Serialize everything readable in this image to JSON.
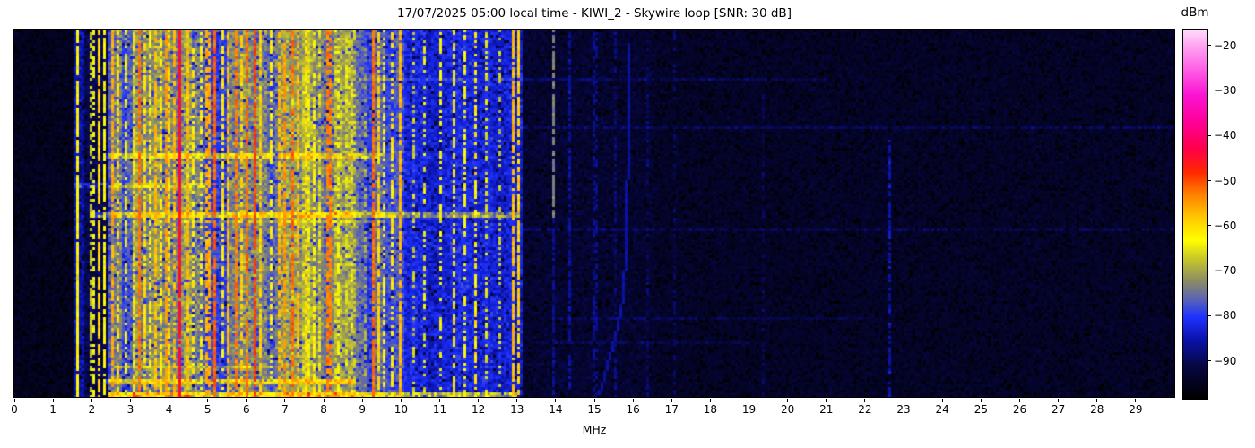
{
  "title": "17/07/2025 05:00 local time - KIWI_2 - Skywire loop [SNR: 30 dB]",
  "axis": {
    "x_label": "MHz",
    "x_ticks": [
      0,
      1,
      2,
      3,
      4,
      5,
      6,
      7,
      8,
      9,
      10,
      11,
      12,
      13,
      14,
      15,
      16,
      17,
      18,
      19,
      20,
      21,
      22,
      23,
      24,
      25,
      26,
      27,
      28,
      29
    ]
  },
  "colorbar": {
    "label": "dBm",
    "ticks": [
      -20,
      -30,
      -40,
      -50,
      -60,
      -70,
      -80,
      -90
    ]
  },
  "chart_data": {
    "type": "heatmap",
    "subtype": "radio-spectrogram-waterfall",
    "title": "17/07/2025 05:00 local time - KIWI_2 - Skywire loop [SNR: 30 dB]",
    "xlabel": "MHz",
    "x_range_mhz": [
      0,
      30
    ],
    "power_range_dbm": [
      -98,
      -16.5
    ],
    "colorbar_label": "dBm",
    "colorbar_ticks_dbm": [
      -20,
      -30,
      -40,
      -50,
      -60,
      -70,
      -80,
      -90
    ],
    "colormap_stops": [
      [
        -98,
        "#000000"
      ],
      [
        -91,
        "#06063e"
      ],
      [
        -85,
        "#0a12aa"
      ],
      [
        -80,
        "#1e32ff"
      ],
      [
        -76,
        "#5a64b4"
      ],
      [
        -72,
        "#8c8c64"
      ],
      [
        -67,
        "#c8c828"
      ],
      [
        -63,
        "#ffff00"
      ],
      [
        -58,
        "#ffc800"
      ],
      [
        -53,
        "#ff8200"
      ],
      [
        -48,
        "#ff2800"
      ],
      [
        -43,
        "#ff0046"
      ],
      [
        -37,
        "#ff0096"
      ],
      [
        -31,
        "#fa14d2"
      ],
      [
        -25,
        "#ff64e6"
      ],
      [
        -20,
        "#ffa5f0"
      ],
      [
        -16.5,
        "#ffdcfa"
      ]
    ],
    "noise_bands": [
      {
        "from": 0.0,
        "to": 1.5,
        "base": -94.5,
        "ns": 2.5,
        "tex": 0
      },
      {
        "from": 1.5,
        "to": 1.78,
        "base": -85.5,
        "ns": 4.0,
        "tex": 0
      },
      {
        "from": 1.78,
        "to": 2.42,
        "base": -90.0,
        "ns": 3.5,
        "tex": 0
      },
      {
        "from": 2.42,
        "to": 8.75,
        "base": -79.0,
        "ns": 5.5,
        "tex": 14
      },
      {
        "from": 8.75,
        "to": 9.6,
        "base": -81.0,
        "ns": 5.0,
        "tex": 8
      },
      {
        "from": 9.6,
        "to": 13.12,
        "base": -83.0,
        "ns": 4.5,
        "tex": 5
      },
      {
        "from": 13.12,
        "to": 16.5,
        "base": -92.5,
        "ns": 3.0,
        "tex": 0
      },
      {
        "from": 16.5,
        "to": 30.0,
        "base": -93.6,
        "ns": 2.8,
        "tex": 0
      }
    ],
    "activity_clusters": [
      {
        "from": 2.5,
        "to": 2.78,
        "boost": 5
      },
      {
        "from": 3.08,
        "to": 4.58,
        "boost": 6
      },
      {
        "from": 5.48,
        "to": 6.38,
        "boost": 6
      },
      {
        "from": 6.88,
        "to": 7.66,
        "boost": 5
      },
      {
        "from": 9.3,
        "to": 10.05,
        "boost": 3
      }
    ],
    "signals": [
      {
        "f": 1.63,
        "w": 0.07,
        "level": -63,
        "duty": 0.95
      },
      {
        "f": 1.95,
        "w": 0.07,
        "level": -67,
        "duty": 0.6
      },
      {
        "f": 2.05,
        "w": 0.07,
        "level": -64,
        "duty": 0.45
      },
      {
        "f": 2.18,
        "w": 0.07,
        "level": -59,
        "duty": 0.8
      },
      {
        "f": 2.33,
        "w": 0.07,
        "level": -63,
        "duty": 0.85
      },
      {
        "f": 2.55,
        "w": 0.1,
        "level": -56,
        "duty": 0.75
      },
      {
        "f": 2.66,
        "w": 0.07,
        "level": -60,
        "duty": 0.6
      },
      {
        "f": 2.9,
        "w": 0.07,
        "level": -65,
        "duty": 0.55
      },
      {
        "f": 3.07,
        "w": 0.07,
        "level": -62,
        "duty": 0.6
      },
      {
        "f": 3.22,
        "w": 0.08,
        "level": -52,
        "duty": 0.8
      },
      {
        "f": 3.35,
        "w": 0.07,
        "level": -60,
        "duty": 0.7
      },
      {
        "f": 3.5,
        "w": 0.07,
        "level": -62,
        "duty": 0.65
      },
      {
        "f": 3.63,
        "w": 0.07,
        "level": -57,
        "duty": 0.75
      },
      {
        "f": 3.77,
        "w": 0.07,
        "level": -61,
        "duty": 0.6
      },
      {
        "f": 3.9,
        "w": 0.08,
        "level": -55,
        "duty": 0.75
      },
      {
        "f": 4.02,
        "w": 0.07,
        "level": -60,
        "duty": 0.65
      },
      {
        "f": 4.13,
        "w": 0.07,
        "level": -57,
        "duty": 0.6
      },
      {
        "f": 4.27,
        "w": 0.13,
        "level": -44,
        "duty": 0.97
      },
      {
        "f": 4.45,
        "w": 0.07,
        "level": -57,
        "duty": 0.65
      },
      {
        "f": 4.62,
        "w": 0.07,
        "level": -61,
        "duty": 0.6
      },
      {
        "f": 4.8,
        "w": 0.07,
        "level": -63,
        "duty": 0.55
      },
      {
        "f": 5.0,
        "w": 0.08,
        "level": -56,
        "duty": 0.7
      },
      {
        "f": 5.17,
        "w": 0.08,
        "level": -51,
        "duty": 0.85
      },
      {
        "f": 5.35,
        "w": 0.07,
        "level": -61,
        "duty": 0.65
      },
      {
        "f": 5.55,
        "w": 0.07,
        "level": -57,
        "duty": 0.7
      },
      {
        "f": 5.72,
        "w": 0.08,
        "level": -53,
        "duty": 0.75
      },
      {
        "f": 5.87,
        "w": 0.07,
        "level": -59,
        "duty": 0.7
      },
      {
        "f": 6.02,
        "w": 0.09,
        "level": -52,
        "duty": 0.8
      },
      {
        "f": 6.19,
        "w": 0.08,
        "level": -49,
        "duty": 0.85
      },
      {
        "f": 6.36,
        "w": 0.07,
        "level": -59,
        "duty": 0.65
      },
      {
        "f": 6.6,
        "w": 0.07,
        "level": -62,
        "duty": 0.55
      },
      {
        "f": 6.82,
        "w": 0.07,
        "level": -57,
        "duty": 0.65
      },
      {
        "f": 7.0,
        "w": 0.08,
        "level": -55,
        "duty": 0.75
      },
      {
        "f": 7.2,
        "w": 0.08,
        "level": -52,
        "duty": 0.75
      },
      {
        "f": 7.36,
        "w": 0.07,
        "level": -57,
        "duty": 0.7
      },
      {
        "f": 7.52,
        "w": 0.07,
        "level": -60,
        "duty": 0.65
      },
      {
        "f": 7.72,
        "w": 0.07,
        "level": -62,
        "duty": 0.55
      },
      {
        "f": 7.9,
        "w": 0.07,
        "level": -65,
        "duty": 0.5
      },
      {
        "f": 8.12,
        "w": 0.08,
        "level": -53,
        "duty": 0.7
      },
      {
        "f": 8.35,
        "w": 0.07,
        "level": -63,
        "duty": 0.55
      },
      {
        "f": 8.58,
        "w": 0.07,
        "level": -65,
        "duty": 0.5
      },
      {
        "f": 8.78,
        "w": 0.07,
        "level": -67,
        "duty": 0.45
      },
      {
        "f": 9.05,
        "w": 0.07,
        "level": -69,
        "duty": 0.45
      },
      {
        "f": 9.27,
        "w": 0.08,
        "level": -52,
        "duty": 0.88
      },
      {
        "f": 9.43,
        "w": 0.07,
        "level": -59,
        "duty": 0.75
      },
      {
        "f": 9.58,
        "w": 0.07,
        "level": -63,
        "duty": 0.55
      },
      {
        "f": 9.78,
        "w": 0.07,
        "level": -61,
        "duty": 0.55
      },
      {
        "f": 9.97,
        "w": 0.1,
        "level": -57,
        "duty": 0.85
      },
      {
        "f": 10.28,
        "w": 0.07,
        "level": -67,
        "duty": 0.4
      },
      {
        "f": 10.6,
        "w": 0.07,
        "level": -65,
        "duty": 0.4
      },
      {
        "f": 11.0,
        "w": 0.07,
        "level": -63,
        "duty": 0.45
      },
      {
        "f": 11.32,
        "w": 0.07,
        "level": -61,
        "duty": 0.55
      },
      {
        "f": 11.62,
        "w": 0.07,
        "level": -63,
        "duty": 0.45
      },
      {
        "f": 11.92,
        "w": 0.07,
        "level": -61,
        "duty": 0.5
      },
      {
        "f": 12.22,
        "w": 0.07,
        "level": -65,
        "duty": 0.4
      },
      {
        "f": 12.52,
        "w": 0.07,
        "level": -67,
        "duty": 0.4
      },
      {
        "f": 12.88,
        "w": 0.08,
        "level": -57,
        "duty": 0.88
      },
      {
        "f": 13.04,
        "w": 0.07,
        "level": -59,
        "duty": 0.8
      },
      {
        "f": 13.93,
        "w": 0.07,
        "level": -73,
        "duty": 0.85,
        "rf": 0,
        "rt": 0.5
      },
      {
        "f": 13.93,
        "w": 0.07,
        "level": -87,
        "duty": 0.7,
        "rf": 0.5,
        "rt": 1
      },
      {
        "f": 14.32,
        "w": 0.07,
        "level": -86,
        "duty": 0.6
      },
      {
        "f": 15.0,
        "w": 0.07,
        "level": -87,
        "duty": 0.5
      },
      {
        "f": 15.55,
        "w": 0.07,
        "level": -88,
        "duty": 0.5
      },
      {
        "f": 16.35,
        "w": 0.05,
        "level": -89,
        "duty": 0.45
      },
      {
        "f": 17.05,
        "w": 0.05,
        "level": -89,
        "duty": 0.4
      },
      {
        "f": 19.3,
        "w": 0.05,
        "level": -90,
        "duty": 0.4
      },
      {
        "f": 22.62,
        "w": 0.06,
        "level": -85,
        "duty": 0.7,
        "rf": 0.3,
        "rt": 1
      }
    ],
    "time_streaks": [
      {
        "row": 0.335,
        "h": 2,
        "from": 2.3,
        "to": 9.6,
        "boost": 9
      },
      {
        "row": 0.42,
        "h": 2,
        "from": 1.55,
        "to": 5.0,
        "boost": 7
      },
      {
        "row": 0.5,
        "h": 2,
        "from": 2.0,
        "to": 13.05,
        "boost": 11
      },
      {
        "row": 0.525,
        "h": 1,
        "from": 4.3,
        "to": 9.6,
        "boost": 5
      },
      {
        "row": 0.13,
        "h": 1,
        "from": 8.9,
        "to": 21.0,
        "boost": 3.5
      },
      {
        "row": 0.265,
        "h": 1,
        "from": 13.0,
        "to": 30.0,
        "boost": 3.5
      },
      {
        "row": 0.546,
        "h": 1,
        "from": 13.0,
        "to": 30.0,
        "boost": 3.2
      },
      {
        "row": 0.79,
        "h": 1,
        "from": 14.0,
        "to": 22.0,
        "boost": 3
      },
      {
        "row": 0.855,
        "h": 1,
        "from": 13.5,
        "to": 19.0,
        "boost": 3
      },
      {
        "row": 0.92,
        "h": 1,
        "from": 2.6,
        "to": 6.6,
        "boost": 5
      },
      {
        "row": 0.955,
        "h": 2,
        "from": 2.3,
        "to": 8.8,
        "boost": 11
      },
      {
        "row": 0.99,
        "h": 2,
        "from": 2.4,
        "to": 13.0,
        "boost": 13
      }
    ],
    "trace_curve": {
      "level": -85.5,
      "points": [
        [
          15.82,
          0.04
        ],
        [
          15.8,
          0.4
        ],
        [
          15.76,
          0.62
        ],
        [
          15.66,
          0.74
        ],
        [
          15.48,
          0.84
        ],
        [
          15.27,
          0.92
        ],
        [
          15.08,
          0.99
        ]
      ]
    }
  }
}
